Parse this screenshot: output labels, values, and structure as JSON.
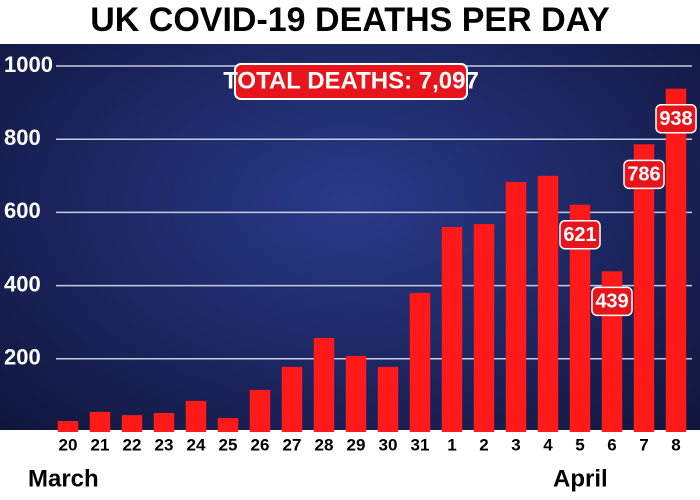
{
  "chart_data": {
    "type": "bar",
    "title": "UK COVID-19 DEATHS PER DAY",
    "annotation": "TOTAL DEATHS: 7,097",
    "group_labels": [
      "March",
      "April"
    ],
    "categories": [
      "20",
      "21",
      "22",
      "23",
      "24",
      "25",
      "26",
      "27",
      "28",
      "29",
      "30",
      "31",
      "1",
      "2",
      "3",
      "4",
      "5",
      "6",
      "7",
      "8"
    ],
    "values": [
      30,
      55,
      46,
      52,
      85,
      38,
      115,
      178,
      257,
      208,
      178,
      380,
      560,
      568,
      683,
      700,
      621,
      439,
      786,
      938
    ],
    "value_labels": [
      null,
      null,
      null,
      null,
      null,
      null,
      null,
      null,
      null,
      null,
      null,
      null,
      null,
      null,
      null,
      null,
      "621",
      "439",
      "786",
      "938"
    ],
    "color": "#ff1a1a",
    "ylim": [
      0,
      1000
    ],
    "yticks": [
      200,
      400,
      600,
      800,
      1000
    ],
    "grid": true
  }
}
